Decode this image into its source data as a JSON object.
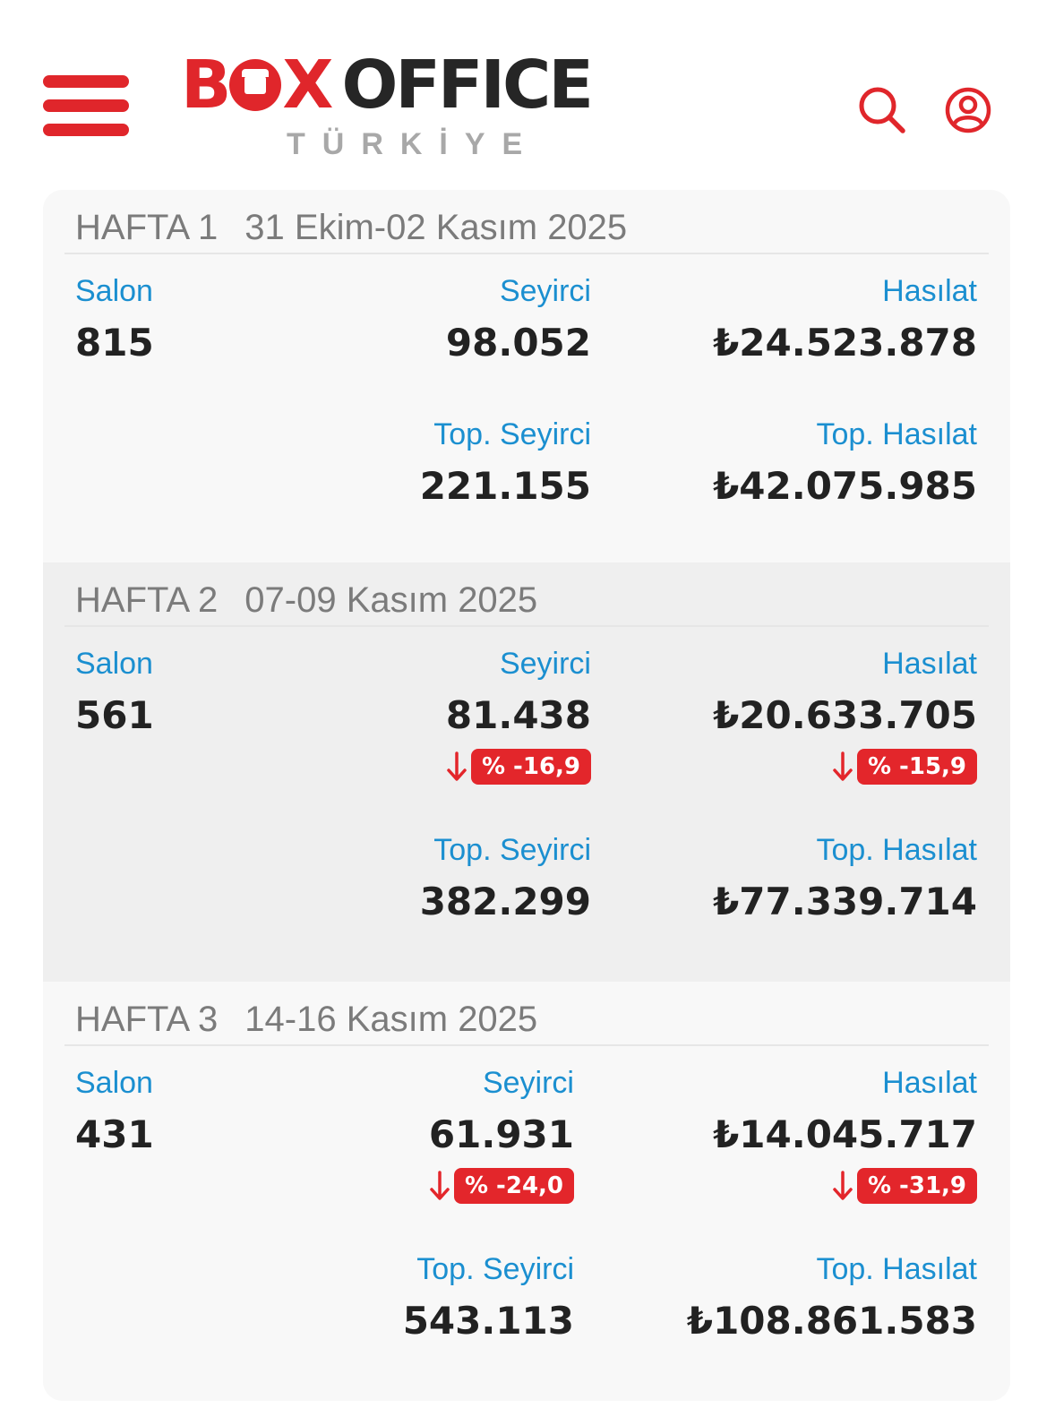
{
  "brand": {
    "logo_left": "B",
    "logo_mid": "X",
    "logo_right": "OFFICE",
    "logo_sub": "TÜRKİYE",
    "accent_color": "#e0262b"
  },
  "header": {
    "menu_icon": "hamburger-menu-icon",
    "search_icon": "search-icon",
    "user_icon": "user-account-icon"
  },
  "weeks": [
    {
      "title": "HAFTA 1",
      "date": "31 Ekim-02 Kasım 2025",
      "salon_label": "Salon",
      "salon": "815",
      "seyirci_label": "Seyirci",
      "seyirci": "98.052",
      "hasilat_label": "Hasılat",
      "hasilat": "₺24.523.878",
      "top_seyirci_label": "Top. Seyirci",
      "top_seyirci": "221.155",
      "top_hasilat_label": "Top. Hasılat",
      "top_hasilat": "₺42.075.985"
    },
    {
      "title": "HAFTA 2",
      "date": "07-09 Kasım 2025",
      "salon_label": "Salon",
      "salon": "561",
      "seyirci_label": "Seyirci",
      "seyirci": "81.438",
      "seyirci_change": "% -16,9",
      "hasilat_label": "Hasılat",
      "hasilat": "₺20.633.705",
      "hasilat_change": "% -15,9",
      "top_seyirci_label": "Top. Seyirci",
      "top_seyirci": "382.299",
      "top_hasilat_label": "Top. Hasılat",
      "top_hasilat": "₺77.339.714"
    },
    {
      "title": "HAFTA 3",
      "date": "14-16 Kasım 2025",
      "salon_label": "Salon",
      "salon": "431",
      "seyirci_label": "Seyirci",
      "seyirci": "61.931",
      "seyirci_change": "% -24,0",
      "hasilat_label": "Hasılat",
      "hasilat": "₺14.045.717",
      "hasilat_change": "% -31,9",
      "top_seyirci_label": "Top. Seyirci",
      "top_seyirci": "543.113",
      "top_hasilat_label": "Top. Hasılat",
      "top_hasilat": "₺108.861.583"
    }
  ],
  "colors": {
    "label_blue": "#1b8fd0",
    "value_dark": "#222222",
    "decline_red": "#e3262b",
    "week_heading_gray": "#7b7b7b"
  }
}
